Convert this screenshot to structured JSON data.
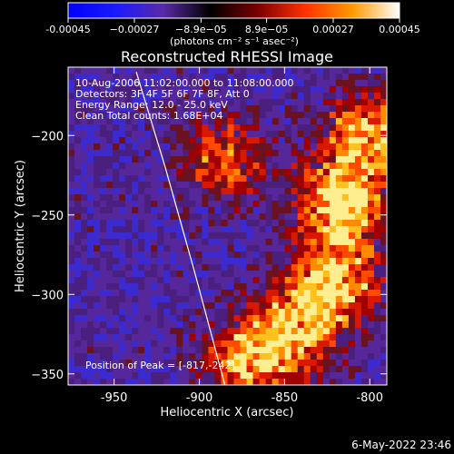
{
  "chart_data": {
    "type": "heatmap",
    "title": "Reconstructed RHESSI Image",
    "xlabel": "Heliocentric X (arcsec)",
    "ylabel": "Heliocentric Y (arcsec)",
    "xlim": [
      -977,
      -790
    ],
    "ylim": [
      -357,
      -157
    ],
    "xticks": [
      -950,
      -900,
      -850,
      -800
    ],
    "yticks": [
      -200,
      -250,
      -300,
      -350
    ],
    "xtick_labels": [
      "-950",
      "-900",
      "-850",
      "-800"
    ],
    "ytick_labels": [
      "−200",
      "−250",
      "−300",
      "−350"
    ],
    "colorbar": {
      "range": [
        -0.00045,
        0.00045
      ],
      "tick_labels": [
        "-0.00045",
        "−0.00027",
        "−8.9e−05",
        "8.9e−05",
        "0.00027",
        "0.00045"
      ],
      "tick_values": [
        -0.00045,
        -0.00027,
        -8.9e-05,
        8.9e-05,
        0.00027,
        0.00045
      ],
      "unit_label": "(photons cm⁻² s⁻¹ asec⁻²)",
      "colors": [
        "#0000ff",
        "#1a1aff",
        "#5a2aa8",
        "#000000",
        "#7a0000",
        "#ff3000",
        "#ff9a00",
        "#ffffff"
      ]
    },
    "annotations": [
      "10-Aug-2006 11:02:00.000 to 11:08:00.000",
      "Detectors: 3F 4F 5F 6F 7F 8F, Att 0",
      "Energy Range: 12.0 - 25.0 keV",
      "Clean     Total counts: 1.68E+04"
    ],
    "peak_label": "Position of Peak = [-817,-242]",
    "limb_points": [
      [
        -937,
        -160
      ],
      [
        -920,
        -220
      ],
      [
        -903,
        -285
      ],
      [
        -885,
        -357
      ]
    ],
    "bright_regions": [
      {
        "x": -817,
        "y": -242,
        "level": 1.0
      },
      {
        "x": -820,
        "y": -290,
        "level": 0.85
      },
      {
        "x": -800,
        "y": -200,
        "level": 0.8
      },
      {
        "x": -870,
        "y": -340,
        "level": 0.9
      },
      {
        "x": -885,
        "y": -215,
        "level": 0.6
      },
      {
        "x": -840,
        "y": -320,
        "level": 0.7
      }
    ]
  },
  "footer": {
    "timestamp": "6-May-2022 23:46"
  }
}
